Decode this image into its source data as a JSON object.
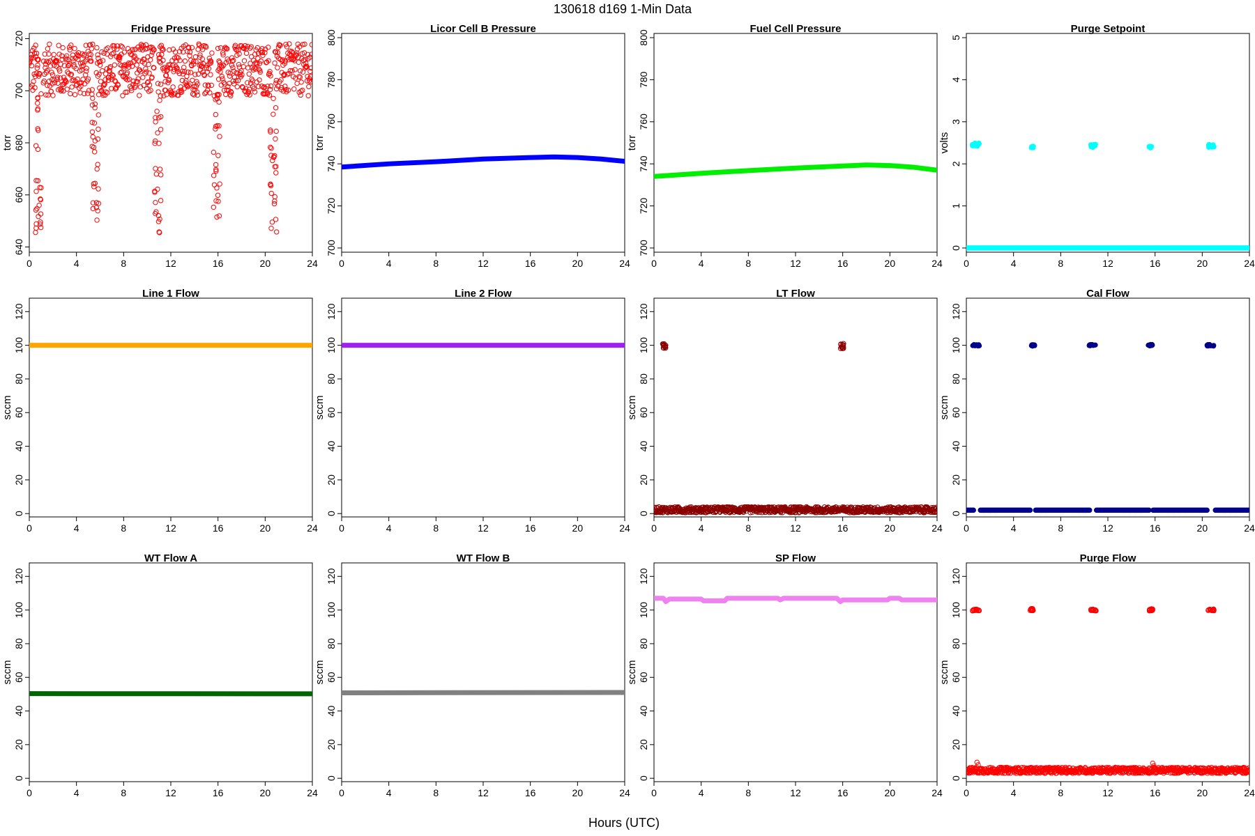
{
  "figure": {
    "title": "130618   d169   1-Min Data",
    "xlabel": "Hours (UTC)"
  },
  "chart_data": [
    {
      "type": "scatter",
      "title": "Fridge Pressure",
      "ylabel": "torr",
      "xlim": [
        0,
        24
      ],
      "ylim": [
        638,
        722
      ],
      "xticks": [
        0,
        4,
        8,
        12,
        16,
        20,
        24
      ],
      "yticks": [
        640,
        660,
        680,
        700,
        720
      ],
      "color": "#ff0000",
      "marker": "open-circle",
      "series": [
        {
          "description": "scattered band 698-718 torr with gaps",
          "pattern": "band",
          "x_start": 0,
          "x_end": 24,
          "y_low": 698,
          "y_high": 718,
          "gaps": [
            [
              0.9,
              1.2
            ],
            [
              5.4,
              5.7
            ],
            [
              10.6,
              10.9
            ],
            [
              15.5,
              15.9
            ],
            [
              20.5,
              20.8
            ]
          ]
        },
        {
          "description": "purge dips",
          "pattern": "dips",
          "dips": [
            {
              "x": 0.8,
              "y_min": 639
            },
            {
              "x": 5.6,
              "y_min": 648
            },
            {
              "x": 10.9,
              "y_min": 642
            },
            {
              "x": 15.9,
              "y_min": 650
            },
            {
              "x": 20.7,
              "y_min": 643
            }
          ]
        }
      ]
    },
    {
      "type": "line",
      "title": "Licor Cell B Pressure",
      "ylabel": "torr",
      "xlim": [
        0,
        24
      ],
      "ylim": [
        698,
        802
      ],
      "xticks": [
        0,
        4,
        8,
        12,
        16,
        20,
        24
      ],
      "yticks": [
        700,
        720,
        740,
        760,
        780,
        800
      ],
      "color": "#0000ff",
      "series": [
        {
          "x": [
            0,
            4,
            8,
            12,
            16,
            18,
            20,
            22,
            24
          ],
          "y": [
            738.5,
            740.0,
            741.0,
            742.3,
            743.0,
            743.3,
            743.0,
            742.3,
            741.2
          ]
        }
      ]
    },
    {
      "type": "line",
      "title": "Fuel Cell Pressure",
      "ylabel": "torr",
      "xlim": [
        0,
        24
      ],
      "ylim": [
        698,
        802
      ],
      "xticks": [
        0,
        4,
        8,
        12,
        16,
        20,
        24
      ],
      "yticks": [
        700,
        720,
        740,
        760,
        780,
        800
      ],
      "color": "#00ee00",
      "series": [
        {
          "x": [
            0,
            4,
            8,
            12,
            16,
            18,
            20,
            22,
            24
          ],
          "y": [
            734.0,
            735.5,
            736.8,
            738.0,
            739.0,
            739.5,
            739.2,
            738.4,
            737.0
          ]
        }
      ]
    },
    {
      "type": "scatter",
      "title": "Purge Setpoint",
      "ylabel": "volts",
      "xlim": [
        0,
        24
      ],
      "ylim": [
        -0.1,
        5.1
      ],
      "xticks": [
        0,
        4,
        8,
        12,
        16,
        20,
        24
      ],
      "yticks": [
        0,
        1,
        2,
        3,
        4,
        5
      ],
      "color": "#00ffff",
      "series": [
        {
          "description": "baseline",
          "pattern": "flat",
          "x_start": 0,
          "x_end": 24,
          "y": 0
        },
        {
          "description": "setpoint events",
          "pattern": "clusters",
          "clusters": [
            {
              "x_start": 0.5,
              "x_end": 1.1,
              "y_low": 2.4,
              "y_high": 2.5
            },
            {
              "x_start": 5.5,
              "x_end": 5.7,
              "y_low": 2.38,
              "y_high": 2.42
            },
            {
              "x_start": 10.5,
              "x_end": 11.0,
              "y_low": 2.38,
              "y_high": 2.48
            },
            {
              "x_start": 15.5,
              "x_end": 15.7,
              "y_low": 2.38,
              "y_high": 2.42
            },
            {
              "x_start": 20.5,
              "x_end": 21.0,
              "y_low": 2.38,
              "y_high": 2.48
            }
          ]
        }
      ]
    },
    {
      "type": "line",
      "title": "Line 1 Flow",
      "ylabel": "sccm",
      "xlim": [
        0,
        24
      ],
      "ylim": [
        -2,
        128
      ],
      "xticks": [
        0,
        4,
        8,
        12,
        16,
        20,
        24
      ],
      "yticks": [
        0,
        20,
        40,
        60,
        80,
        100,
        120
      ],
      "color": "#ffa500",
      "series": [
        {
          "x": [
            0,
            24
          ],
          "y": [
            100,
            100
          ]
        }
      ]
    },
    {
      "type": "line",
      "title": "Line 2 Flow",
      "ylabel": "sccm",
      "xlim": [
        0,
        24
      ],
      "ylim": [
        -2,
        128
      ],
      "xticks": [
        0,
        4,
        8,
        12,
        16,
        20,
        24
      ],
      "yticks": [
        0,
        20,
        40,
        60,
        80,
        100,
        120
      ],
      "color": "#a020f0",
      "series": [
        {
          "x": [
            0,
            24
          ],
          "y": [
            100,
            100
          ]
        }
      ]
    },
    {
      "type": "scatter",
      "title": "LT Flow",
      "ylabel": "sccm",
      "xlim": [
        0,
        24
      ],
      "ylim": [
        -2,
        128
      ],
      "xticks": [
        0,
        4,
        8,
        12,
        16,
        20,
        24
      ],
      "yticks": [
        0,
        20,
        40,
        60,
        80,
        100,
        120
      ],
      "color": "#8b0000",
      "marker": "open-circle",
      "series": [
        {
          "description": "baseline band",
          "pattern": "band",
          "x_start": 0,
          "x_end": 24,
          "y_low": 0.5,
          "y_high": 4.0
        },
        {
          "description": "high flow events",
          "pattern": "clusters",
          "clusters": [
            {
              "x_start": 0.7,
              "x_end": 1.0,
              "y_low": 98,
              "y_high": 101
            },
            {
              "x_start": 15.8,
              "x_end": 16.1,
              "y_low": 98,
              "y_high": 101
            }
          ]
        }
      ]
    },
    {
      "type": "scatter",
      "title": "Cal Flow",
      "ylabel": "sccm",
      "xlim": [
        0,
        24
      ],
      "ylim": [
        -2,
        128
      ],
      "xticks": [
        0,
        4,
        8,
        12,
        16,
        20,
        24
      ],
      "yticks": [
        0,
        20,
        40,
        60,
        80,
        100,
        120
      ],
      "color": "#00008b",
      "series": [
        {
          "description": "baseline",
          "pattern": "flat",
          "x_start": 0,
          "x_end": 24,
          "y": 2,
          "gaps": [
            [
              0.7,
              1.1
            ],
            [
              5.5,
              5.8
            ],
            [
              10.5,
              11.0
            ],
            [
              15.5,
              15.8
            ],
            [
              20.5,
              21.0
            ]
          ]
        },
        {
          "description": "cal events",
          "pattern": "clusters",
          "clusters": [
            {
              "x_start": 0.5,
              "x_end": 1.1,
              "y_low": 99.5,
              "y_high": 100.5
            },
            {
              "x_start": 5.4,
              "x_end": 5.8,
              "y_low": 99.5,
              "y_high": 100.5
            },
            {
              "x_start": 10.4,
              "x_end": 11.0,
              "y_low": 99.5,
              "y_high": 100.5
            },
            {
              "x_start": 15.4,
              "x_end": 15.8,
              "y_low": 99.5,
              "y_high": 100.5
            },
            {
              "x_start": 20.4,
              "x_end": 21.0,
              "y_low": 99.5,
              "y_high": 100.5
            }
          ]
        }
      ]
    },
    {
      "type": "line",
      "title": "WT Flow A",
      "ylabel": "sccm",
      "xlim": [
        0,
        24
      ],
      "ylim": [
        -2,
        128
      ],
      "xticks": [
        0,
        4,
        8,
        12,
        16,
        20,
        24
      ],
      "yticks": [
        0,
        20,
        40,
        60,
        80,
        100,
        120
      ],
      "color": "#006400",
      "series": [
        {
          "x": [
            0,
            24
          ],
          "y": [
            50.3,
            50.2
          ]
        }
      ]
    },
    {
      "type": "line",
      "title": "WT Flow B",
      "ylabel": "sccm",
      "xlim": [
        0,
        24
      ],
      "ylim": [
        -2,
        128
      ],
      "xticks": [
        0,
        4,
        8,
        12,
        16,
        20,
        24
      ],
      "yticks": [
        0,
        20,
        40,
        60,
        80,
        100,
        120
      ],
      "color": "#808080",
      "series": [
        {
          "x": [
            0,
            24
          ],
          "y": [
            50.8,
            51.0
          ]
        }
      ]
    },
    {
      "type": "line",
      "title": "SP Flow",
      "ylabel": "sccm",
      "xlim": [
        0,
        24
      ],
      "ylim": [
        -2,
        128
      ],
      "xticks": [
        0,
        4,
        8,
        12,
        16,
        20,
        24
      ],
      "yticks": [
        0,
        20,
        40,
        60,
        80,
        100,
        120
      ],
      "color": "#ee82ee",
      "series": [
        {
          "x": [
            0,
            0.8,
            1.0,
            1.3,
            4.0,
            4.2,
            6.0,
            6.2,
            10.5,
            10.7,
            11.0,
            15.5,
            15.8,
            16.0,
            19.8,
            20.0,
            20.8,
            21.0,
            24
          ],
          "y": [
            107,
            107,
            105,
            106.5,
            106.5,
            105.5,
            105.5,
            107,
            107,
            106,
            107,
            107,
            105,
            106,
            106,
            107,
            107,
            106,
            106
          ]
        }
      ]
    },
    {
      "type": "scatter",
      "title": "Purge Flow",
      "ylabel": "sccm",
      "xlim": [
        0,
        24
      ],
      "ylim": [
        -2,
        128
      ],
      "xticks": [
        0,
        4,
        8,
        12,
        16,
        20,
        24
      ],
      "yticks": [
        0,
        20,
        40,
        60,
        80,
        100,
        120
      ],
      "color": "#ff0000",
      "marker": "open-circle",
      "series": [
        {
          "description": "baseline band",
          "pattern": "band",
          "x_start": 0,
          "x_end": 24,
          "y_low": 3,
          "y_high": 6.5,
          "spikes": [
            {
              "x": 0.9,
              "y": 9.5
            },
            {
              "x": 15.8,
              "y": 9.0
            }
          ]
        },
        {
          "description": "purge events",
          "pattern": "clusters",
          "clusters": [
            {
              "x_start": 0.5,
              "x_end": 1.1,
              "y_low": 99.5,
              "y_high": 100.5
            },
            {
              "x_start": 5.4,
              "x_end": 5.7,
              "y_low": 99.5,
              "y_high": 100.8
            },
            {
              "x_start": 10.4,
              "x_end": 11.0,
              "y_low": 99.5,
              "y_high": 100.5
            },
            {
              "x_start": 15.5,
              "x_end": 15.8,
              "y_low": 99.5,
              "y_high": 100.8
            },
            {
              "x_start": 20.5,
              "x_end": 21.0,
              "y_low": 99.5,
              "y_high": 100.8
            }
          ]
        }
      ]
    }
  ]
}
